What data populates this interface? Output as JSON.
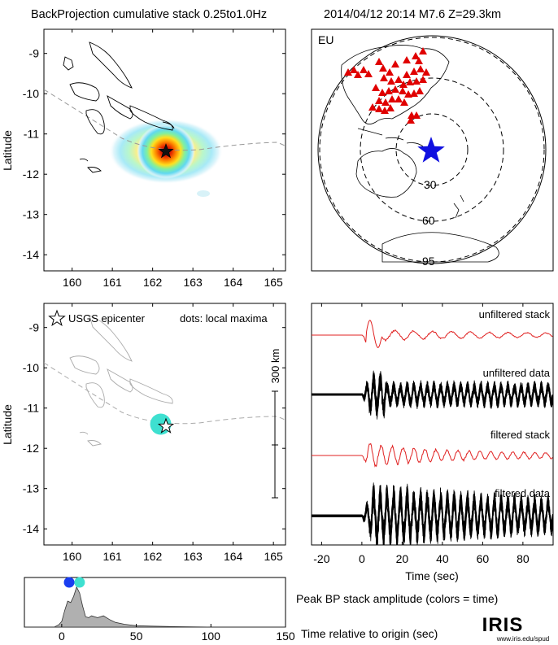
{
  "header": {
    "left_title": "BackProjection cumulative stack 0.25to1.0Hz",
    "right_title": "2014/04/12 20:14   M7.6  Z=29.3km"
  },
  "colors": {
    "station": "#e00000",
    "epicenter_star": "#1010e0",
    "stack_trace": "#e02020",
    "data_trace": "#000000",
    "coast": "#000000",
    "coast_faded": "#999999",
    "trench": "#999999",
    "maxima": "#3ee0d0",
    "envelope_fill": "#b0b0b0"
  },
  "chart_data": [
    {
      "id": "bp-map",
      "type": "heatmap",
      "ylabel": "Latitude",
      "xlim": [
        159.3,
        165.3
      ],
      "ylim": [
        -14.4,
        -8.4
      ],
      "xticks": [
        "160",
        "161",
        "162",
        "163",
        "164",
        "165"
      ],
      "yticks": [
        "-9",
        "-10",
        "-11",
        "-12",
        "-13",
        "-14"
      ],
      "peak": {
        "lon": 162.2,
        "lat": -11.3
      },
      "epicenter": {
        "lon": 162.2,
        "lat": -11.3
      }
    },
    {
      "id": "array-map",
      "type": "scatter",
      "label": "EU",
      "distance_rings": [
        "30",
        "60",
        "95"
      ],
      "station_symbol": "triangle",
      "epicenter_symbol": "star"
    },
    {
      "id": "maxima-map",
      "type": "scatter",
      "ylabel": "Latitude",
      "xlim": [
        159.3,
        165.3
      ],
      "ylim": [
        -14.4,
        -8.4
      ],
      "xticks": [
        "160",
        "161",
        "162",
        "163",
        "164",
        "165"
      ],
      "yticks": [
        "-9",
        "-10",
        "-11",
        "-12",
        "-13",
        "-14"
      ],
      "legend": "USGS epicenter",
      "note": "dots: local maxima",
      "scale_bar": "300 km",
      "maxima": [
        {
          "lon": 162.2,
          "lat": -11.4
        }
      ],
      "epicenter": {
        "lon": 162.2,
        "lat": -11.3
      }
    },
    {
      "id": "seismograms",
      "type": "line",
      "xlabel": "Time (sec)",
      "xlim": [
        -25,
        95
      ],
      "xticks": [
        "-20",
        "0",
        "20",
        "40",
        "60",
        "80"
      ],
      "traces": [
        {
          "name": "unfiltered stack"
        },
        {
          "name": "unfiltered data"
        },
        {
          "name": "filtered stack"
        },
        {
          "name": "filtered data"
        }
      ]
    },
    {
      "id": "peak-amplitude",
      "type": "area",
      "title": "Peak BP stack amplitude (colors = time)",
      "xlabel": "Time relative to origin (sec)",
      "xlim": [
        -25,
        150
      ],
      "xticks": [
        "0",
        "50",
        "100",
        "150"
      ],
      "x": [
        -25,
        -5,
        -2,
        0,
        2,
        4,
        6,
        8,
        10,
        12,
        14,
        16,
        18,
        20,
        24,
        28,
        32,
        36,
        42,
        50,
        60,
        75,
        100,
        150
      ],
      "values": [
        0,
        0,
        0.05,
        0.12,
        0.35,
        0.55,
        0.52,
        0.65,
        0.85,
        0.72,
        0.45,
        0.22,
        0.2,
        0.24,
        0.2,
        0.24,
        0.16,
        0.1,
        0.06,
        0.03,
        0.02,
        0.01,
        0,
        0
      ],
      "ylim": [
        0,
        1
      ],
      "dots": [
        {
          "time": 5,
          "color": "#1a3ef0"
        },
        {
          "time": 12,
          "color": "#3ee0d0"
        }
      ]
    }
  ],
  "logo": {
    "text": "IRIS",
    "url_text": "www.iris.edu/spud"
  }
}
